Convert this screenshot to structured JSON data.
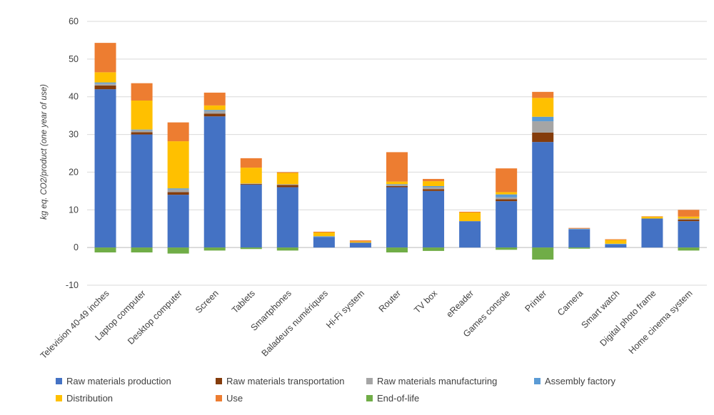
{
  "chart_data": {
    "type": "bar",
    "stacked": true,
    "title": "",
    "ylabel": "kg eq. CO2/product (one year of use)",
    "ylim": [
      -10,
      60
    ],
    "yticks": [
      -10,
      0,
      10,
      20,
      30,
      40,
      50,
      60
    ],
    "grid": true,
    "legend_position": "bottom",
    "categories": [
      "Television 40-49 inches",
      "Laptop computer",
      "Desktop computer",
      "Screen",
      "Tablets",
      "Smartphones",
      "Baladeurs numériques",
      "Hi-Fi system",
      "Router",
      "TV box",
      "eReader",
      "Games console",
      "Printer",
      "Camera",
      "Smart watch",
      "Digital photo frame",
      "Home cinema system"
    ],
    "series": [
      {
        "name": "Raw materials production",
        "color": "#4472C4",
        "values": [
          42,
          30,
          14,
          34.8,
          16.7,
          16,
          2.8,
          1.3,
          16,
          15,
          7,
          12.3,
          28,
          4.8,
          0.8,
          7.7,
          7
        ]
      },
      {
        "name": "Raw materials transportation",
        "color": "#843C0C",
        "values": [
          1,
          0.6,
          0.7,
          0.7,
          0.2,
          0.6,
          0,
          0,
          0.3,
          0.5,
          0,
          0.5,
          2.5,
          0,
          0,
          0,
          0.4
        ]
      },
      {
        "name": "Raw materials manufacturing",
        "color": "#A5A5A5",
        "values": [
          0.5,
          0.5,
          0.7,
          0.7,
          0.1,
          0.2,
          0,
          0,
          0.3,
          0.5,
          0,
          0.5,
          3,
          0,
          0,
          0,
          0.3
        ]
      },
      {
        "name": "Assembly factory",
        "color": "#5B9BD5",
        "values": [
          0.3,
          0.2,
          0.3,
          0.3,
          0,
          0,
          0.2,
          0,
          0.2,
          0.3,
          0,
          0.8,
          1.2,
          0.2,
          0.2,
          0,
          0
        ]
      },
      {
        "name": "Distribution",
        "color": "#FFC000",
        "values": [
          2.7,
          7.7,
          12.5,
          1.2,
          4.2,
          3,
          1,
          0.3,
          0.7,
          1.3,
          2.3,
          0.6,
          5,
          0,
          1,
          0.5,
          0.5
        ]
      },
      {
        "name": "Use",
        "color": "#ED7D31",
        "values": [
          7.8,
          4.6,
          5,
          3.4,
          2.5,
          0.2,
          0.2,
          0.3,
          7.8,
          0.6,
          0.2,
          6.3,
          1.6,
          0.2,
          0.2,
          0.1,
          1.8
        ]
      },
      {
        "name": "End-of-life",
        "color": "#70AD47",
        "values": [
          -1.3,
          -1.3,
          -1.6,
          -0.8,
          -0.4,
          -0.8,
          0,
          0,
          -1.3,
          -0.9,
          0,
          -0.6,
          -3.2,
          -0.3,
          0,
          0,
          -0.8
        ]
      }
    ]
  }
}
